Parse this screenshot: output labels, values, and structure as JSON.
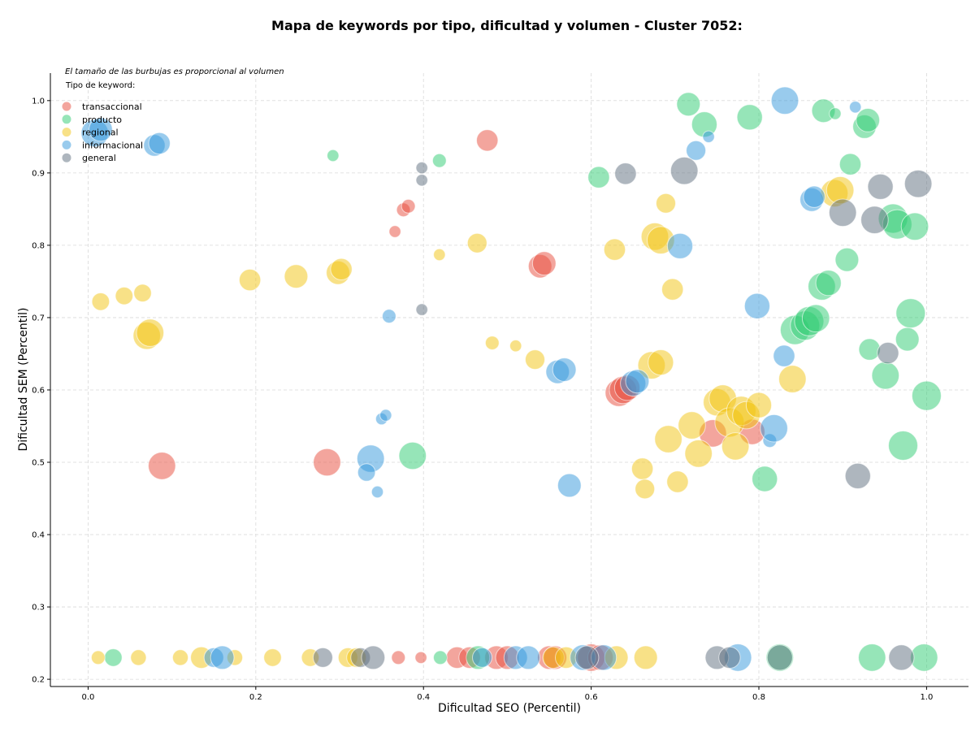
{
  "chart_data": {
    "type": "scatter",
    "title": "Mapa de keywords por tipo, dificultad y volumen - Cluster 7052:",
    "xlabel": "Dificultad SEO (Percentil)",
    "ylabel": "Dificultad SEM (Percentil)",
    "note": "El tamaño de las burbujas es proporcional al volumen",
    "legend_title": "Tipo de keyword:",
    "legend_position": "top-left",
    "grid": true,
    "xlim": [
      -0.045,
      1.05
    ],
    "ylim": [
      0.19,
      1.038
    ],
    "xticks": [
      "0.0",
      "0.2",
      "0.4",
      "0.6",
      "0.8",
      "1.0"
    ],
    "yticks": [
      "0.2",
      "0.3",
      "0.4",
      "0.5",
      "0.6",
      "0.7",
      "0.8",
      "0.9",
      "1.0"
    ],
    "series": [
      {
        "name": "transaccional",
        "color": "#e74c3c",
        "points": [
          [
            0.088,
            0.495,
            0.7
          ],
          [
            0.285,
            0.5,
            0.7
          ],
          [
            0.366,
            0.819,
            0.3
          ],
          [
            0.376,
            0.849,
            0.35
          ],
          [
            0.382,
            0.854,
            0.35
          ],
          [
            0.476,
            0.945,
            0.55
          ],
          [
            0.539,
            0.771,
            0.6
          ],
          [
            0.544,
            0.775,
            0.6
          ],
          [
            0.633,
            0.596,
            0.7
          ],
          [
            0.638,
            0.6,
            0.7
          ],
          [
            0.643,
            0.603,
            0.65
          ],
          [
            0.745,
            0.54,
            0.7
          ],
          [
            0.792,
            0.542,
            0.65
          ],
          [
            0.37,
            0.23,
            0.35
          ],
          [
            0.397,
            0.23,
            0.3
          ],
          [
            0.44,
            0.23,
            0.55
          ],
          [
            0.455,
            0.23,
            0.55
          ],
          [
            0.487,
            0.23,
            0.6
          ],
          [
            0.5,
            0.23,
            0.6
          ],
          [
            0.55,
            0.23,
            0.6
          ],
          [
            0.557,
            0.23,
            0.6
          ],
          [
            0.6,
            0.23,
            0.7
          ],
          [
            0.611,
            0.23,
            0.65
          ]
        ]
      },
      {
        "name": "producto",
        "color": "#2ecc71",
        "points": [
          [
            0.03,
            0.23,
            0.45
          ],
          [
            0.292,
            0.924,
            0.3
          ],
          [
            0.387,
            0.509,
            0.7
          ],
          [
            0.419,
            0.917,
            0.35
          ],
          [
            0.609,
            0.894,
            0.55
          ],
          [
            0.716,
            0.995,
            0.6
          ],
          [
            0.735,
            0.967,
            0.65
          ],
          [
            0.789,
            0.977,
            0.65
          ],
          [
            0.807,
            0.477,
            0.65
          ],
          [
            0.843,
            0.683,
            0.75
          ],
          [
            0.855,
            0.689,
            0.75
          ],
          [
            0.86,
            0.695,
            0.75
          ],
          [
            0.868,
            0.699,
            0.7
          ],
          [
            0.875,
            0.743,
            0.7
          ],
          [
            0.883,
            0.748,
            0.65
          ],
          [
            0.877,
            0.986,
            0.6
          ],
          [
            0.891,
            0.982,
            0.3
          ],
          [
            0.905,
            0.78,
            0.6
          ],
          [
            0.909,
            0.912,
            0.55
          ],
          [
            0.926,
            0.964,
            0.6
          ],
          [
            0.93,
            0.973,
            0.6
          ],
          [
            0.932,
            0.656,
            0.55
          ],
          [
            0.951,
            0.62,
            0.7
          ],
          [
            0.96,
            0.837,
            0.75
          ],
          [
            0.965,
            0.829,
            0.75
          ],
          [
            0.972,
            0.523,
            0.75
          ],
          [
            0.977,
            0.67,
            0.6
          ],
          [
            0.981,
            0.706,
            0.75
          ],
          [
            0.986,
            0.826,
            0.7
          ],
          [
            1.0,
            0.592,
            0.75
          ],
          [
            0.42,
            0.23,
            0.35
          ],
          [
            0.465,
            0.23,
            0.6
          ],
          [
            0.825,
            0.23,
            0.7
          ],
          [
            0.935,
            0.23,
            0.7
          ],
          [
            0.997,
            0.23,
            0.7
          ]
        ]
      },
      {
        "name": "regional",
        "color": "#f1c40f",
        "points": [
          [
            0.015,
            0.722,
            0.45
          ],
          [
            0.043,
            0.73,
            0.45
          ],
          [
            0.065,
            0.734,
            0.45
          ],
          [
            0.07,
            0.675,
            0.7
          ],
          [
            0.074,
            0.679,
            0.7
          ],
          [
            0.193,
            0.752,
            0.55
          ],
          [
            0.248,
            0.757,
            0.6
          ],
          [
            0.298,
            0.762,
            0.6
          ],
          [
            0.302,
            0.767,
            0.55
          ],
          [
            0.419,
            0.787,
            0.3
          ],
          [
            0.464,
            0.803,
            0.5
          ],
          [
            0.482,
            0.665,
            0.35
          ],
          [
            0.51,
            0.661,
            0.3
          ],
          [
            0.533,
            0.642,
            0.5
          ],
          [
            0.628,
            0.794,
            0.55
          ],
          [
            0.661,
            0.491,
            0.55
          ],
          [
            0.664,
            0.463,
            0.5
          ],
          [
            0.672,
            0.634,
            0.7
          ],
          [
            0.676,
            0.812,
            0.7
          ],
          [
            0.683,
            0.807,
            0.7
          ],
          [
            0.683,
            0.638,
            0.65
          ],
          [
            0.689,
            0.858,
            0.5
          ],
          [
            0.692,
            0.532,
            0.7
          ],
          [
            0.697,
            0.739,
            0.55
          ],
          [
            0.703,
            0.473,
            0.55
          ],
          [
            0.72,
            0.551,
            0.7
          ],
          [
            0.728,
            0.512,
            0.7
          ],
          [
            0.75,
            0.583,
            0.7
          ],
          [
            0.757,
            0.588,
            0.7
          ],
          [
            0.765,
            0.555,
            0.75
          ],
          [
            0.772,
            0.522,
            0.7
          ],
          [
            0.779,
            0.571,
            0.75
          ],
          [
            0.785,
            0.565,
            0.7
          ],
          [
            0.8,
            0.579,
            0.65
          ],
          [
            0.84,
            0.615,
            0.7
          ],
          [
            0.89,
            0.872,
            0.7
          ],
          [
            0.897,
            0.876,
            0.7
          ],
          [
            0.012,
            0.23,
            0.35
          ],
          [
            0.06,
            0.23,
            0.4
          ],
          [
            0.11,
            0.23,
            0.4
          ],
          [
            0.135,
            0.23,
            0.55
          ],
          [
            0.175,
            0.23,
            0.4
          ],
          [
            0.22,
            0.23,
            0.45
          ],
          [
            0.265,
            0.23,
            0.45
          ],
          [
            0.31,
            0.23,
            0.5
          ],
          [
            0.32,
            0.23,
            0.5
          ],
          [
            0.555,
            0.23,
            0.55
          ],
          [
            0.57,
            0.23,
            0.55
          ],
          [
            0.63,
            0.23,
            0.6
          ],
          [
            0.665,
            0.23,
            0.6
          ]
        ]
      },
      {
        "name": "informacional",
        "color": "#3498db",
        "points": [
          [
            0.008,
            0.955,
            0.7
          ],
          [
            0.015,
            0.96,
            0.6
          ],
          [
            0.079,
            0.938,
            0.55
          ],
          [
            0.085,
            0.941,
            0.55
          ],
          [
            0.337,
            0.505,
            0.7
          ],
          [
            0.332,
            0.486,
            0.45
          ],
          [
            0.345,
            0.459,
            0.3
          ],
          [
            0.35,
            0.56,
            0.3
          ],
          [
            0.355,
            0.565,
            0.3
          ],
          [
            0.359,
            0.702,
            0.35
          ],
          [
            0.56,
            0.625,
            0.6
          ],
          [
            0.568,
            0.628,
            0.6
          ],
          [
            0.574,
            0.468,
            0.6
          ],
          [
            0.65,
            0.609,
            0.65
          ],
          [
            0.655,
            0.612,
            0.6
          ],
          [
            0.706,
            0.799,
            0.65
          ],
          [
            0.725,
            0.931,
            0.5
          ],
          [
            0.74,
            0.95,
            0.3
          ],
          [
            0.798,
            0.716,
            0.65
          ],
          [
            0.813,
            0.53,
            0.35
          ],
          [
            0.818,
            0.547,
            0.7
          ],
          [
            0.83,
            0.647,
            0.55
          ],
          [
            0.831,
            1.0,
            0.7
          ],
          [
            0.863,
            0.863,
            0.6
          ],
          [
            0.866,
            0.867,
            0.55
          ],
          [
            0.915,
            0.991,
            0.3
          ],
          [
            0.15,
            0.23,
            0.5
          ],
          [
            0.16,
            0.23,
            0.6
          ],
          [
            0.47,
            0.23,
            0.5
          ],
          [
            0.51,
            0.23,
            0.6
          ],
          [
            0.525,
            0.23,
            0.6
          ],
          [
            0.59,
            0.23,
            0.65
          ],
          [
            0.615,
            0.23,
            0.65
          ],
          [
            0.775,
            0.23,
            0.7
          ]
        ]
      },
      {
        "name": "general",
        "color": "#5d6d7e",
        "points": [
          [
            0.398,
            0.907,
            0.3
          ],
          [
            0.398,
            0.89,
            0.3
          ],
          [
            0.398,
            0.711,
            0.3
          ],
          [
            0.641,
            0.899,
            0.55
          ],
          [
            0.711,
            0.903,
            0.7
          ],
          [
            0.9,
            0.845,
            0.7
          ],
          [
            0.918,
            0.481,
            0.65
          ],
          [
            0.938,
            0.835,
            0.7
          ],
          [
            0.945,
            0.881,
            0.65
          ],
          [
            0.954,
            0.651,
            0.55
          ],
          [
            0.99,
            0.885,
            0.7
          ],
          [
            0.28,
            0.23,
            0.5
          ],
          [
            0.325,
            0.23,
            0.5
          ],
          [
            0.34,
            0.23,
            0.6
          ],
          [
            0.595,
            0.23,
            0.6
          ],
          [
            0.75,
            0.23,
            0.6
          ],
          [
            0.765,
            0.23,
            0.55
          ],
          [
            0.825,
            0.23,
            0.65
          ],
          [
            0.97,
            0.23,
            0.65
          ]
        ]
      }
    ]
  }
}
